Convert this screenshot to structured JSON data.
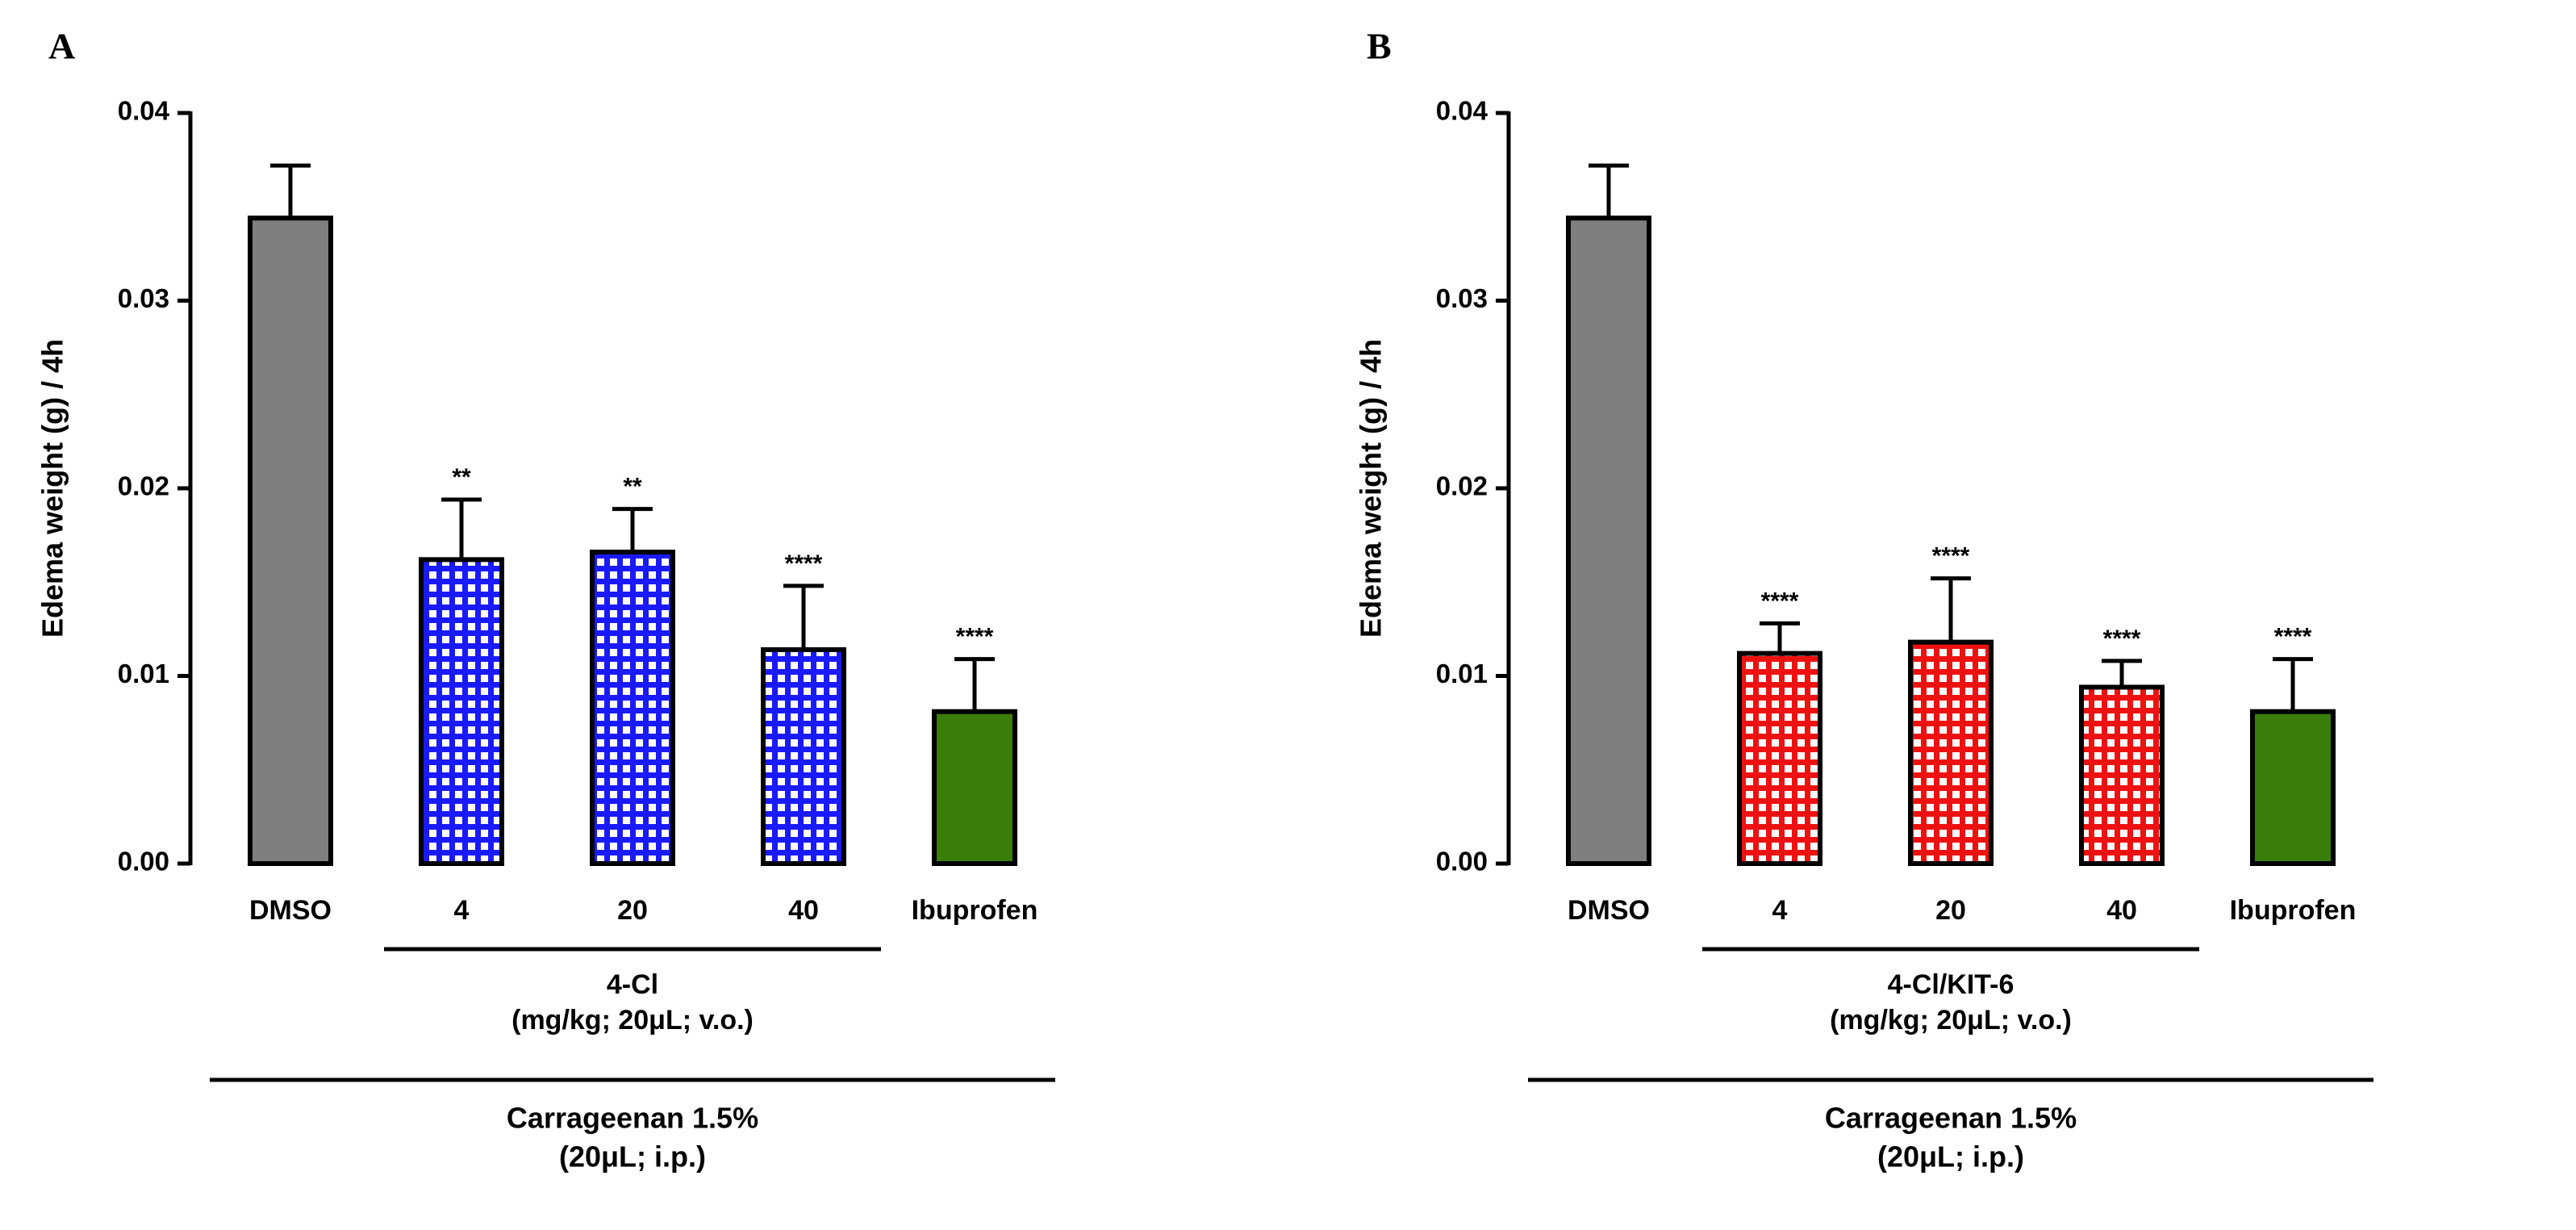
{
  "chart_data": [
    {
      "type": "bar",
      "panel_label": "A",
      "ylabel": "Edema weight (g) / 4h",
      "categories": [
        "DMSO",
        "4",
        "20",
        "40",
        "Ibuprofen"
      ],
      "values": [
        0.0344,
        0.0162,
        0.0166,
        0.0114,
        0.0081
      ],
      "errors": [
        0.0028,
        0.0032,
        0.0023,
        0.0034,
        0.0028
      ],
      "significance": [
        null,
        "**",
        "**",
        "****",
        "****"
      ],
      "colors": [
        "#7f7f7f",
        "#1a1aff",
        "#1a1aff",
        "#1a1aff",
        "#3b7d0b"
      ],
      "patterns": [
        "solid",
        "grid",
        "grid",
        "grid",
        "solid"
      ],
      "subgroup_label": "4-Cl",
      "subgroup_note": "(mg/kg; 20μL; v.o.)",
      "outer_label": "Carrageenan 1.5%",
      "outer_note": "(20μL; i.p.)",
      "ylim": [
        0,
        0.04
      ],
      "yticks": [
        {
          "value": 0,
          "label": "0.00"
        },
        0.01,
        0.02,
        0.03,
        0.04
      ]
    },
    {
      "type": "bar",
      "panel_label": "B",
      "ylabel": "Edema weight (g) / 4h",
      "categories": [
        "DMSO",
        "4",
        "20",
        "40",
        "Ibuprofen"
      ],
      "values": [
        0.0344,
        0.0112,
        0.0118,
        0.0094,
        0.0081
      ],
      "errors": [
        0.0028,
        0.0016,
        0.0034,
        0.0014,
        0.0028
      ],
      "significance": [
        null,
        "****",
        "****",
        "****",
        "****"
      ],
      "colors": [
        "#7f7f7f",
        "#ee1111",
        "#ee1111",
        "#ee1111",
        "#3b7d0b"
      ],
      "patterns": [
        "solid",
        "grid",
        "grid",
        "grid",
        "solid"
      ],
      "subgroup_label": "4-Cl/KIT-6",
      "subgroup_note": "(mg/kg; 20μL; v.o.)",
      "outer_label": "Carrageenan 1.5%",
      "outer_note": "(20μL; i.p.)",
      "ylim": [
        0,
        0.04
      ],
      "yticks": [
        {
          "value": 0,
          "label": "0.00"
        },
        0.01,
        0.02,
        0.03,
        0.04
      ]
    }
  ]
}
